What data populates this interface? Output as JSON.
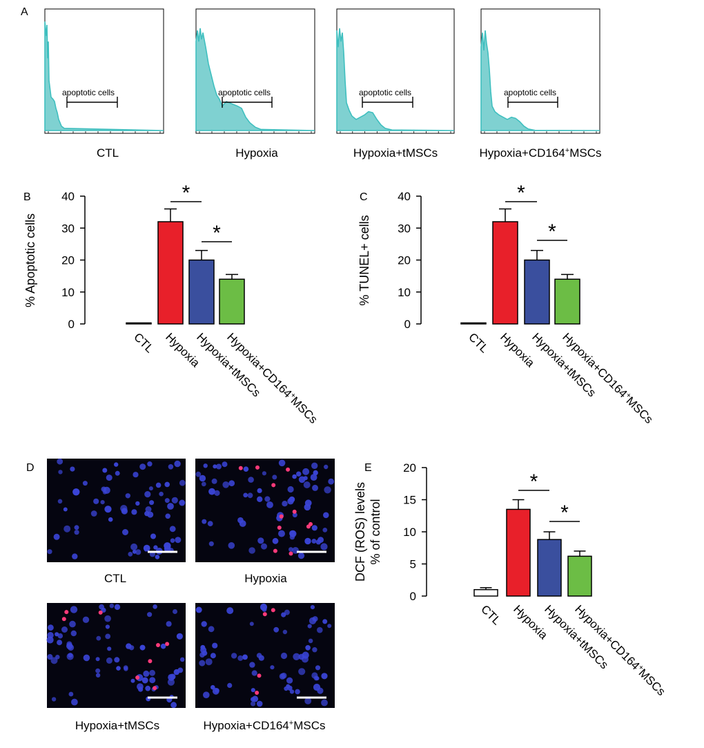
{
  "panels": {
    "a": {
      "letter": "A",
      "gate_label": "apoptotic cells",
      "histograms": [
        {
          "label": "CTL",
          "shape": "ctl"
        },
        {
          "label": "Hypoxia",
          "shape": "hypoxia"
        },
        {
          "label": "Hypoxia+tMSCs",
          "shape": "tmsc"
        },
        {
          "label_main": "Hypoxia+CD164",
          "label_sup": "+",
          "label_tail": "MSCs",
          "shape": "cd164"
        }
      ]
    },
    "b": {
      "letter": "B"
    },
    "c": {
      "letter": "C"
    },
    "d": {
      "letter": "D",
      "images": [
        {
          "label": "CTL",
          "red_cells": 0
        },
        {
          "label": "Hypoxia",
          "red_cells": 11
        },
        {
          "label": "Hypoxia+tMSCs",
          "red_cells": 8
        },
        {
          "label_main": "Hypoxia+CD164",
          "label_sup": "+",
          "label_tail": "MSCs",
          "red_cells": 4
        }
      ]
    },
    "e": {
      "letter": "E"
    }
  },
  "colors": {
    "teal": "#3fbfbf",
    "teal_fill": "#7fd1d1",
    "red": "#e8202a",
    "blue": "#3a4f9e",
    "green": "#6cbd45",
    "white": "#ffffff",
    "micro_bg": "#050510",
    "nuclei": "#3a44d6",
    "tunel": "#ff3a7a"
  },
  "chart_data": [
    {
      "panel": "B",
      "type": "bar",
      "categories": [
        "CTL",
        "Hypoxia",
        "Hypoxia+tMSCs",
        "Hypoxia+CD164+MSCs"
      ],
      "values": [
        0,
        32,
        20,
        14
      ],
      "errors": [
        0,
        4,
        3,
        1.5
      ],
      "ylabel": "% Apoptotic cells",
      "ylim": [
        0,
        40
      ],
      "yticks": [
        0,
        10,
        20,
        30,
        40
      ],
      "significance": [
        {
          "from": 1,
          "to": 2,
          "label": "*"
        },
        {
          "from": 2,
          "to": 3,
          "label": "*"
        }
      ],
      "bar_colors": [
        "#ffffff",
        "#e8202a",
        "#3a4f9e",
        "#6cbd45"
      ]
    },
    {
      "panel": "C",
      "type": "bar",
      "categories": [
        "CTL",
        "Hypoxia",
        "Hypoxia+tMSCs",
        "Hypoxia+CD164+MSCs"
      ],
      "values": [
        0,
        32,
        20,
        14
      ],
      "errors": [
        0,
        4,
        3,
        1.5
      ],
      "ylabel": "% TUNEL+ cells",
      "ylim": [
        0,
        40
      ],
      "yticks": [
        0,
        10,
        20,
        30,
        40
      ],
      "significance": [
        {
          "from": 1,
          "to": 2,
          "label": "*"
        },
        {
          "from": 2,
          "to": 3,
          "label": "*"
        }
      ],
      "bar_colors": [
        "#ffffff",
        "#e8202a",
        "#3a4f9e",
        "#6cbd45"
      ]
    },
    {
      "panel": "E",
      "type": "bar",
      "categories": [
        "CTL",
        "Hypoxia",
        "Hypoxia+tMSCs",
        "Hypoxia+CD164+MSCs"
      ],
      "values": [
        1,
        13.5,
        8.8,
        6.2
      ],
      "errors": [
        0.3,
        1.5,
        1.2,
        0.8
      ],
      "ylabel": "DCF (ROS) levels % of control",
      "ylabel_lines": [
        "DCF (ROS) levels",
        "% of control"
      ],
      "ylim": [
        0,
        20
      ],
      "yticks": [
        0,
        5,
        10,
        15,
        20
      ],
      "significance": [
        {
          "from": 1,
          "to": 2,
          "label": "*"
        },
        {
          "from": 2,
          "to": 3,
          "label": "*"
        }
      ],
      "bar_colors": [
        "#ffffff",
        "#e8202a",
        "#3a4f9e",
        "#6cbd45"
      ]
    }
  ]
}
